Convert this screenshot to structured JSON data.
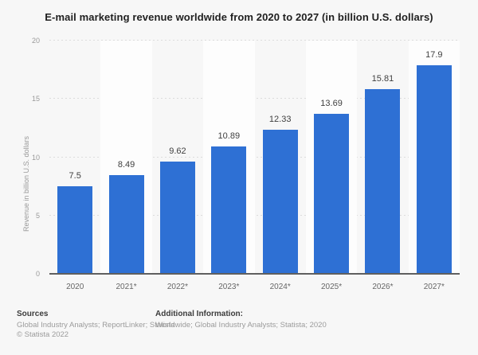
{
  "page": {
    "background_color": "#f7f7f7",
    "accent_color": "#2e70d4",
    "stripe_color": "#fdfdfd"
  },
  "chart_data": {
    "type": "bar",
    "title": "E-mail marketing revenue worldwide from 2020 to 2027 (in billion U.S. dollars)",
    "categories": [
      "2020",
      "2021*",
      "2022*",
      "2023*",
      "2024*",
      "2025*",
      "2026*",
      "2027*"
    ],
    "values": [
      7.5,
      8.49,
      9.62,
      10.89,
      12.33,
      13.69,
      15.81,
      17.9
    ],
    "value_labels": [
      "7.5",
      "8.49",
      "9.62",
      "10.89",
      "12.33",
      "13.69",
      "15.81",
      "17.9"
    ],
    "xlabel": "",
    "ylabel": "Revenue in billion U.S. dollars",
    "ylim": [
      0,
      20
    ],
    "yticks": [
      0,
      5,
      10,
      15,
      20
    ],
    "grid": "horizontal-dashed",
    "legend": "none",
    "bar_color": "#2e70d4"
  },
  "footer": {
    "sources_label": "Sources",
    "sources_text": "Global Industry Analysts; ReportLinker; Statista",
    "copyright": "© Statista 2022",
    "additional_label": "Additional Information:",
    "additional_text": "Worldwide; Global Industry Analysts; Statista; 2020"
  }
}
